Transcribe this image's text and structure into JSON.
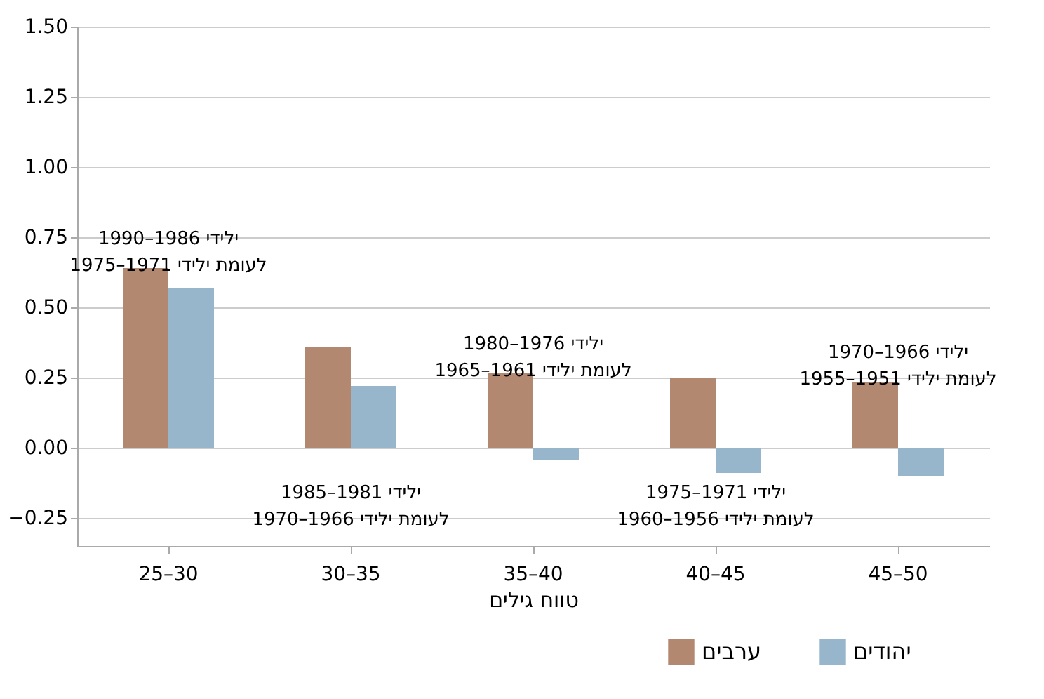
{
  "chart_data": {
    "type": "bar",
    "categories": [
      "25–30",
      "30–35",
      "35–40",
      "40–45",
      "45–50"
    ],
    "series": [
      {
        "name": "ערבים",
        "color": "#b38871",
        "values": [
          0.64,
          0.36,
          0.265,
          0.25,
          0.235
        ]
      },
      {
        "name": "יהודים",
        "color": "#97b6cb",
        "values": [
          0.57,
          0.22,
          -0.045,
          -0.09,
          -0.1
        ]
      }
    ],
    "xlabel": "טווח גילים",
    "ylim": [
      -0.35,
      1.5
    ],
    "yticks": [
      {
        "value": -0.25,
        "label": "−0.25"
      },
      {
        "value": 0,
        "label": "0.00"
      },
      0.25,
      {
        "value": 0.5,
        "label": "0.50"
      },
      0.75,
      {
        "value": 1,
        "label": "1.00"
      },
      1.25,
      {
        "value": 1.5,
        "label": "1.50"
      }
    ],
    "grid": "y",
    "legend": "bottom right",
    "annotations": [
      "ילידי 1986–1990\nלעומת ילידי 1971–1975",
      "ילידי 1981–1985\nלעומת ילידי 1966–1970",
      "ילידי 1976–1980\nלעומת ילידי 1961–1965",
      "ילידי 1971–1975\nלעומת ילידי 1956–1960",
      "ילידי 1966–1970\nלעומת ילידי 1951–1955"
    ]
  }
}
